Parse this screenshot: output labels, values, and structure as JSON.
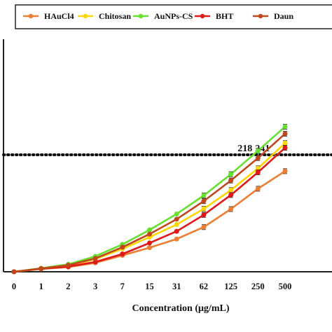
{
  "chart_data": {
    "type": "line",
    "xlabel": "Concentration  (μg/mL)",
    "ylabel": "",
    "categories": [
      "0",
      "1",
      "2",
      "3",
      "7",
      "15",
      "31",
      "62",
      "125",
      "250",
      "500"
    ],
    "ylim": [
      0,
      100
    ],
    "grid": false,
    "legend_position": "top",
    "reference_line": {
      "y": 50,
      "style": "dotted"
    },
    "annotations": [
      "218",
      "241"
    ],
    "series": [
      {
        "name": "HAuCl4",
        "color": "#ed7d31",
        "values": [
          0,
          1.2,
          2.0,
          3.8,
          7.0,
          10.3,
          14.0,
          19.1,
          26.8,
          35.5,
          43.0
        ]
      },
      {
        "name": "Chitosan",
        "color": "#ffd700",
        "values": [
          0,
          1.3,
          2.6,
          5.4,
          9.8,
          14.8,
          20.2,
          26.9,
          34.9,
          44.2,
          55.0
        ]
      },
      {
        "name": "AuNPs-CS",
        "color": "#66e02f",
        "values": [
          0,
          1.5,
          3.2,
          6.6,
          11.7,
          17.9,
          24.7,
          32.6,
          41.7,
          51.7,
          62.0
        ]
      },
      {
        "name": "BHT",
        "color": "#e01818",
        "values": [
          0,
          1.3,
          2.2,
          4.2,
          7.6,
          12.3,
          17.3,
          24.3,
          32.8,
          42.5,
          53.0
        ]
      },
      {
        "name": "Daun",
        "color": "#c0471b",
        "values": [
          0,
          1.4,
          2.8,
          5.7,
          10.5,
          16.1,
          22.5,
          30.2,
          39.0,
          48.6,
          59.0
        ]
      }
    ]
  }
}
